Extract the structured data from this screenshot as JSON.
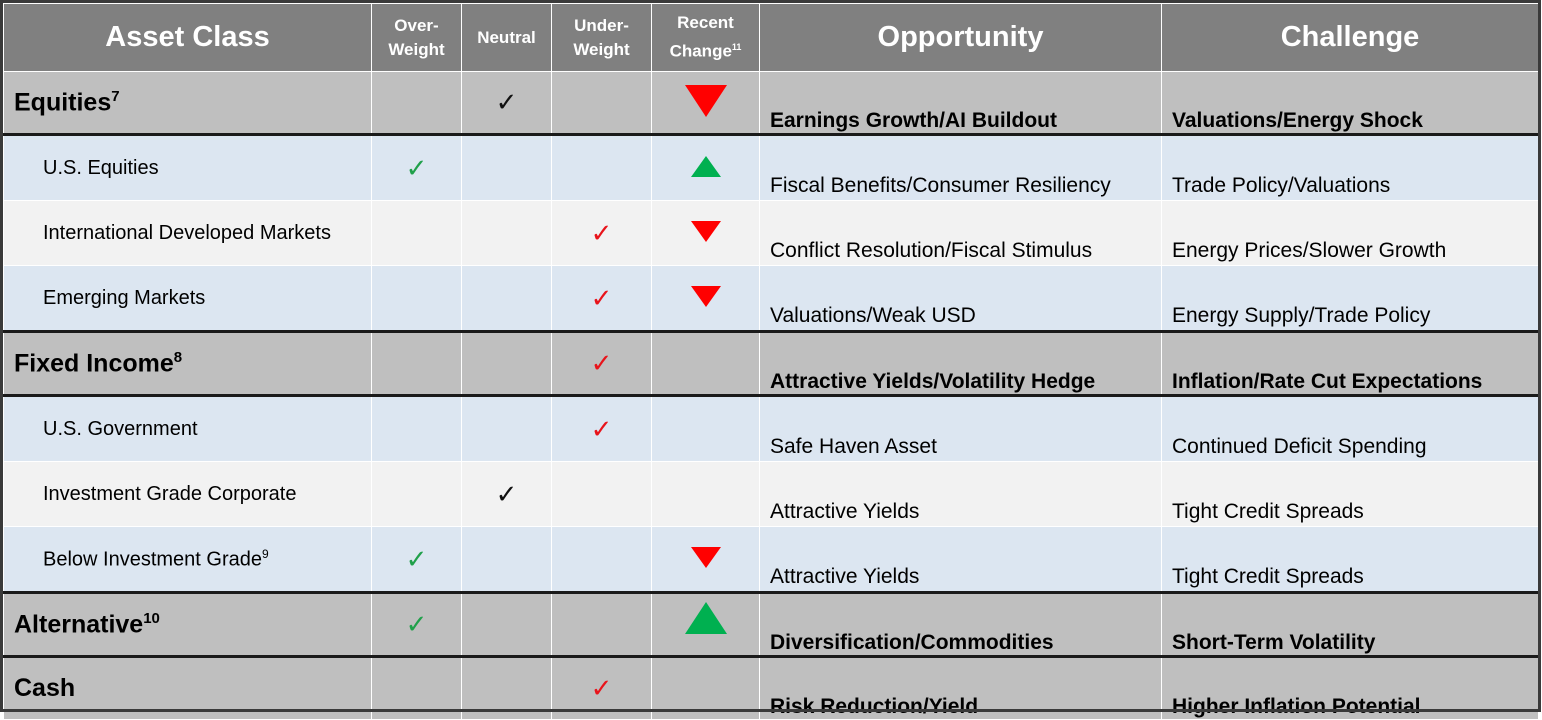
{
  "headers": {
    "asset_class": "Asset Class",
    "overweight_1": "Over-",
    "overweight_2": "Weight",
    "neutral": "Neutral",
    "underweight_1": "Under-",
    "underweight_2": "Weight",
    "recent_change_1": "Recent",
    "recent_change_2": "Change",
    "recent_change_sup": "11",
    "opportunity": "Opportunity",
    "challenge": "Challenge"
  },
  "colors": {
    "header_bg": "#808080",
    "major_bg": "#bfbfbf",
    "sub_blue_bg": "#dce6f1",
    "sub_white_bg": "#f2f2f2",
    "check_green": "#20a04a",
    "check_red": "#e8141b",
    "arrow_up": "#00b050",
    "arrow_down": "#ff0000"
  },
  "check_glyph": "✓",
  "rows": [
    {
      "name": "Equities",
      "sup": "7",
      "type": "major",
      "rating": "neutral",
      "check_color": "black",
      "change": "down",
      "opportunity": "Earnings Growth/AI Buildout",
      "challenge": "Valuations/Energy Shock"
    },
    {
      "name": "U.S. Equities",
      "sup": "",
      "type": "sub",
      "rating": "overweight",
      "check_color": "green",
      "change": "up",
      "opportunity": "Fiscal Benefits/Consumer Resiliency",
      "challenge": "Trade Policy/Valuations"
    },
    {
      "name": "International Developed Markets",
      "sup": "",
      "type": "sub",
      "rating": "underweight",
      "check_color": "red",
      "change": "down",
      "opportunity": "Conflict Resolution/Fiscal Stimulus",
      "challenge": "Energy Prices/Slower Growth"
    },
    {
      "name": "Emerging Markets",
      "sup": "",
      "type": "sub",
      "rating": "underweight",
      "check_color": "red",
      "change": "down",
      "opportunity": "Valuations/Weak USD",
      "challenge": "Energy Supply/Trade Policy"
    },
    {
      "name": "Fixed Income",
      "sup": "8",
      "type": "major",
      "rating": "underweight",
      "check_color": "red",
      "change": "none",
      "opportunity": "Attractive Yields/Volatility Hedge",
      "challenge": "Inflation/Rate Cut Expectations"
    },
    {
      "name": "U.S. Government",
      "sup": "",
      "type": "sub",
      "rating": "underweight",
      "check_color": "red",
      "change": "none",
      "opportunity": "Safe Haven Asset",
      "challenge": "Continued Deficit Spending"
    },
    {
      "name": "Investment Grade Corporate",
      "sup": "",
      "type": "sub",
      "rating": "neutral",
      "check_color": "black",
      "change": "none",
      "opportunity": "Attractive Yields",
      "challenge": "Tight Credit Spreads"
    },
    {
      "name": "Below Investment Grade",
      "sup": "9",
      "type": "sub",
      "rating": "overweight",
      "check_color": "green",
      "change": "down",
      "opportunity": "Attractive Yields",
      "challenge": "Tight Credit Spreads"
    },
    {
      "name": "Alternative",
      "sup": "10",
      "type": "major",
      "rating": "overweight",
      "check_color": "green",
      "change": "up",
      "opportunity": "Diversification/Commodities",
      "challenge": "Short-Term Volatility"
    },
    {
      "name": "Cash",
      "sup": "",
      "type": "major",
      "rating": "underweight",
      "check_color": "red",
      "change": "none",
      "opportunity": "Risk Reduction/Yield",
      "challenge": "Higher Inflation Potential"
    }
  ]
}
